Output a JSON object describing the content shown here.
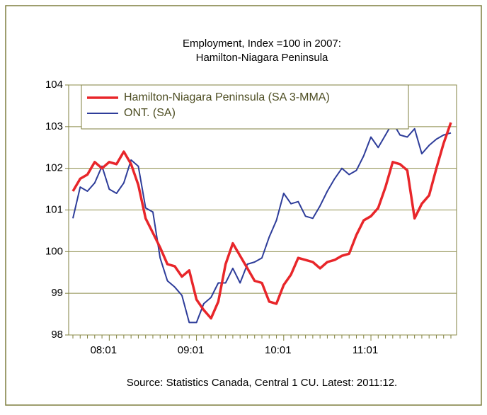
{
  "chart_data": {
    "type": "line",
    "title": [
      "Employment, Index =100 in 2007:",
      "Hamilton-Niagara Peninsula"
    ],
    "note": "Source: Statistics Canada, Central 1 CU. Latest: 2011:12.",
    "categories": [
      null,
      null,
      null,
      null,
      null,
      "08:01",
      null,
      null,
      null,
      null,
      null,
      null,
      null,
      null,
      null,
      null,
      null,
      "09:01",
      null,
      null,
      null,
      null,
      null,
      null,
      null,
      null,
      null,
      null,
      null,
      "10:01",
      null,
      null,
      null,
      null,
      null,
      null,
      null,
      null,
      null,
      null,
      null,
      "11:01",
      null,
      null,
      null,
      null,
      null,
      null,
      null,
      null,
      null,
      null,
      null
    ],
    "series": [
      {
        "name": "Hamilton-Niagara Peninsula (SA 3-MMA)",
        "color": "#e8262a",
        "values": [
          101.45,
          101.75,
          101.85,
          102.15,
          102.0,
          102.15,
          102.1,
          102.4,
          102.1,
          101.6,
          100.8,
          100.45,
          100.1,
          99.7,
          99.65,
          99.4,
          99.55,
          98.85,
          98.6,
          98.4,
          98.8,
          99.7,
          100.2,
          99.9,
          99.6,
          99.3,
          99.25,
          98.8,
          98.75,
          99.2,
          99.45,
          99.85,
          99.8,
          99.75,
          99.6,
          99.75,
          99.8,
          99.9,
          99.95,
          100.4,
          100.75,
          100.85,
          101.05,
          101.55,
          102.15,
          102.1,
          101.95,
          100.8,
          101.15,
          101.35,
          102.0,
          102.6,
          103.1
        ]
      },
      {
        "name": "ONT. (SA)",
        "color": "#2e3d9a",
        "values": [
          100.8,
          101.55,
          101.45,
          101.65,
          102.05,
          101.5,
          101.4,
          101.65,
          102.2,
          102.05,
          101.05,
          100.95,
          99.85,
          99.3,
          99.15,
          98.95,
          98.3,
          98.3,
          98.75,
          98.9,
          99.25,
          99.25,
          99.6,
          99.25,
          99.7,
          99.75,
          99.85,
          100.35,
          100.75,
          101.4,
          101.15,
          101.2,
          100.85,
          100.8,
          101.1,
          101.45,
          101.75,
          102.0,
          101.85,
          101.95,
          102.3,
          102.75,
          102.5,
          102.8,
          103.1,
          102.8,
          102.75,
          102.95,
          102.35,
          102.55,
          102.7,
          102.8,
          102.85
        ]
      }
    ],
    "ylim": [
      98,
      104
    ],
    "yticks": [
      98,
      99,
      100,
      101,
      102,
      103,
      104
    ],
    "grid": true,
    "legend": "top-left"
  }
}
